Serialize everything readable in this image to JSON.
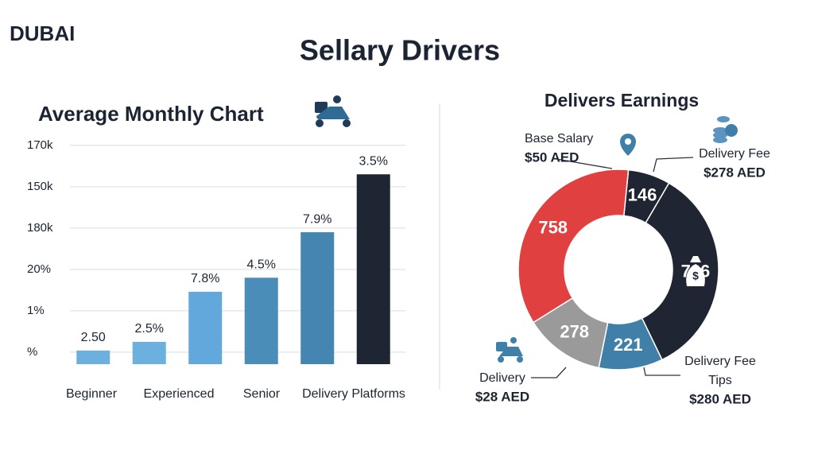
{
  "header": {
    "location": "DUBAI",
    "title": "Sellary Drivers"
  },
  "chart_data": [
    {
      "type": "bar",
      "title": "Average Monthly Chart",
      "categories": [
        "Beginner",
        "Experienced",
        null,
        "Senior",
        null,
        "Delivery Platforms"
      ],
      "values": [
        0.04,
        0.25,
        1.46,
        1.8,
        2.9,
        4.3
      ],
      "colors": [
        "#6cb0e0",
        "#6cb0e0",
        "#62a8dc",
        "#4a8db8",
        "#4585b2",
        "#1e2533"
      ],
      "annotations": [
        "2.50",
        "2.5%",
        "7.8%",
        "4.5%",
        "7.9%",
        "3.5%"
      ],
      "ylim": [
        -0.29,
        5.4
      ],
      "yticks": [
        {
          "value": 0,
          "label": "%"
        },
        {
          "value": 1,
          "label": "1%"
        },
        {
          "value": 2,
          "label": "20%"
        },
        {
          "value": 3,
          "label": "180k"
        },
        {
          "value": 4,
          "label": "150k"
        },
        {
          "value": 5,
          "label": "170k"
        }
      ],
      "grid": true
    },
    {
      "type": "donut",
      "title": "Delivers Earnings",
      "values": [
        146,
        736,
        221,
        278,
        758
      ],
      "colors": [
        "#1f2532",
        "#1f2532",
        "#3f7fa8",
        "#9a9a9a",
        "#e0403f"
      ],
      "callouts": [
        [
          "Base Salary",
          "$50 AED"
        ],
        [
          "Delivery Fee",
          "$278 AED"
        ],
        [
          "Delivery",
          "$28 AED"
        ],
        [
          "Delivery Fee",
          "Tips",
          "$280 AED"
        ]
      ]
    }
  ]
}
